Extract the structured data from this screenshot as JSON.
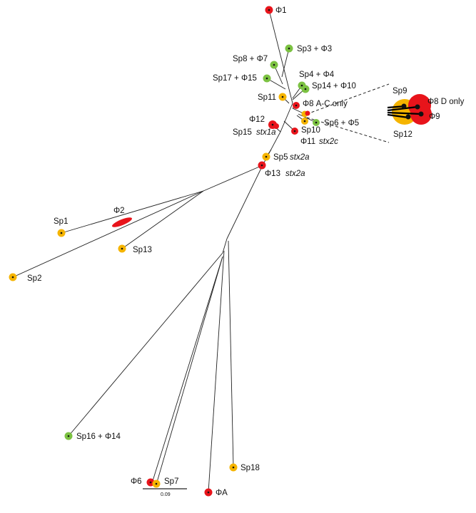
{
  "colors": {
    "phage": "#e8141b",
    "strain": "#f5b400",
    "both": "#7cc242",
    "line": "#222222"
  },
  "labels": {
    "phi1": "Φ1",
    "sp3_phi3": "Sp3 + Φ3",
    "sp8_phi7": "Sp8 + Φ7",
    "sp17_phi15": "Sp17 + Φ15",
    "sp4_phi4": "Sp4 + Φ4",
    "sp14_phi10": "Sp14 + Φ10",
    "sp11": "Sp11",
    "phi8_ac": "Φ8 A-C only",
    "phi12": "Φ12",
    "sp15": "Sp15",
    "stx1a": "stx1a",
    "sp10": "Sp10",
    "sp6_phi5": "Sp6 + Φ5",
    "phi11": "Φ11",
    "stx2c": "stx2c",
    "sp5": "Sp5",
    "stx2a_sp5": "stx2a",
    "phi13": "Φ13",
    "stx2a_phi13": "stx2a",
    "phi2": "Φ2",
    "sp1": "Sp1",
    "sp13": "Sp13",
    "sp2": "Sp2",
    "sp16_phi14": "Sp16 + Φ14",
    "sp18": "Sp18",
    "phi6": "Φ6",
    "sp7": "Sp7",
    "phiA": "ΦA",
    "scale": "0.09",
    "inset_sp9": "Sp9",
    "inset_phi8d": "Φ8 D only",
    "inset_phi9": "Φ9",
    "inset_sp12": "Sp12"
  }
}
